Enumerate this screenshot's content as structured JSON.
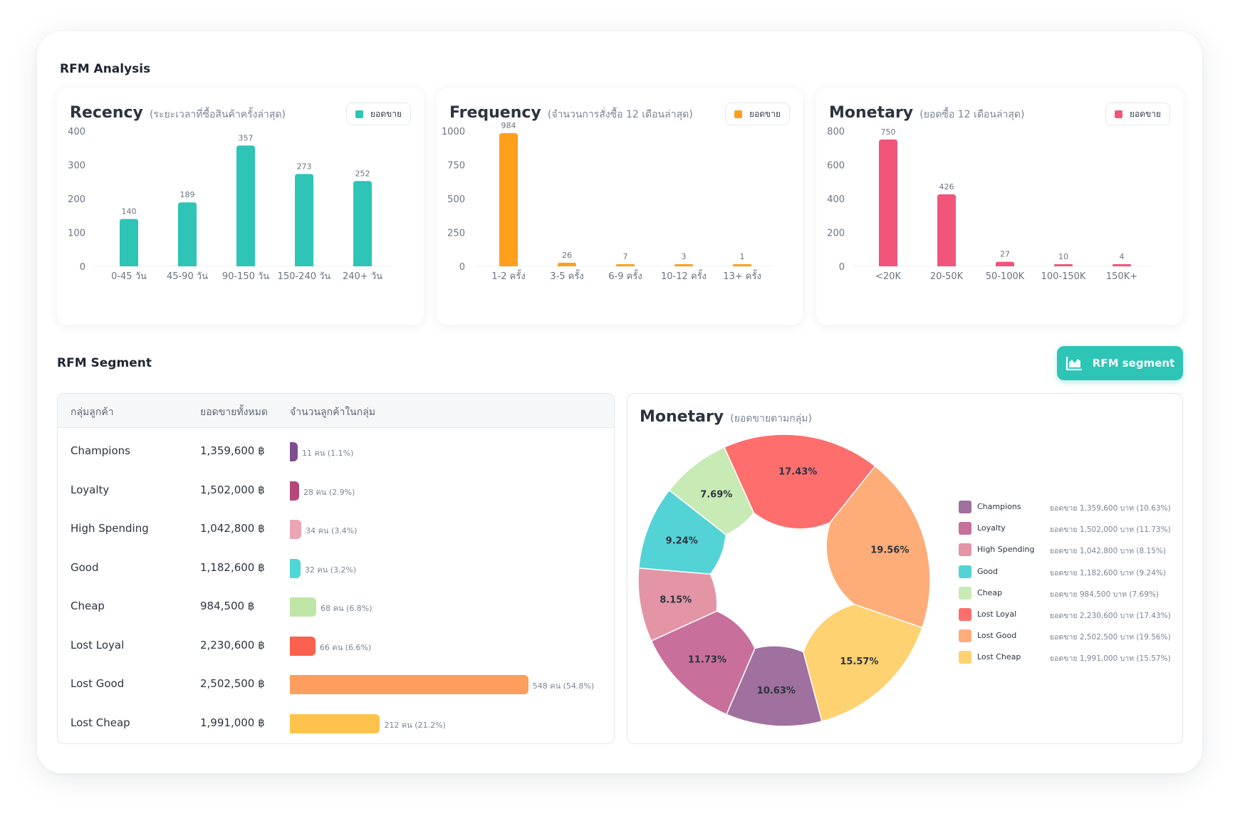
{
  "rfm_analysis_title": "RFM Analysis",
  "rfm_segment_title": "RFM Segment",
  "segment_button": {
    "label": "RFM segment",
    "icon": "chart-area-icon"
  },
  "legend_label": "ยอดขาย",
  "charts": {
    "recency": {
      "title": "Recency",
      "subtitle": "(ระยะเวลาที่ซื้อสินค้าครั้งล่าสุด)",
      "color": "#2ec4b6"
    },
    "frequency": {
      "title": "Frequency",
      "subtitle": "(จำนวนการสั่งซื้อ 12 เดือนล่าสุด)",
      "color": "#ff9f1c"
    },
    "monetary": {
      "title": "Monetary",
      "subtitle": "(ยอดซื้อ 12 เดือนล่าสุด)",
      "color": "#f2557a"
    }
  },
  "chart_data": [
    {
      "type": "bar",
      "id": "recency",
      "categories": [
        "0-45 วัน",
        "45-90 วัน",
        "90-150 วัน",
        "150-240 วัน",
        "240+ วัน"
      ],
      "values": [
        140,
        189,
        357,
        273,
        252
      ],
      "yticks": [
        0,
        100,
        200,
        300,
        400
      ],
      "ylim": [
        0,
        400
      ],
      "series": [
        {
          "name": "ยอดขาย",
          "values": [
            140,
            189,
            357,
            273,
            252
          ]
        }
      ]
    },
    {
      "type": "bar",
      "id": "frequency",
      "categories": [
        "1-2 ครั้ง",
        "3-5 ครั้ง",
        "6-9 ครั้ง",
        "10-12 ครั้ง",
        "13+ ครั้ง"
      ],
      "values": [
        984,
        26,
        7,
        3,
        1
      ],
      "yticks": [
        0,
        250,
        500,
        750,
        1000
      ],
      "ylim": [
        0,
        1000
      ],
      "series": [
        {
          "name": "ยอดขาย",
          "values": [
            984,
            26,
            7,
            3,
            1
          ]
        }
      ]
    },
    {
      "type": "bar",
      "id": "monetary",
      "categories": [
        "<20K",
        "20-50K",
        "50-100K",
        "100-150K",
        "150K+"
      ],
      "values": [
        750,
        426,
        27,
        10,
        4
      ],
      "yticks": [
        0,
        200,
        400,
        600,
        800
      ],
      "ylim": [
        0,
        800
      ],
      "series": [
        {
          "name": "ยอดขาย",
          "values": [
            750,
            426,
            27,
            10,
            4
          ]
        }
      ]
    },
    {
      "type": "pie",
      "id": "monetary-by-group",
      "title": "Monetary",
      "subtitle": "(ยอดขายตามกลุ่ม)",
      "categories": [
        "Champions",
        "Loyalty",
        "High Spending",
        "Good",
        "Cheap",
        "Lost Loyal",
        "Lost Good",
        "Lost Cheap"
      ],
      "values": [
        10.63,
        11.73,
        8.15,
        9.24,
        7.69,
        17.43,
        19.56,
        15.57
      ],
      "labels": [
        "10.63%",
        "11.73%",
        "8.15%",
        "9.24%",
        "7.69%",
        "17.43%",
        "19.56%",
        "15.57%"
      ]
    }
  ],
  "table": {
    "headers": [
      "กลุ่มลูกค้า",
      "ยอดขายทั้งหมด",
      "จำนวนลูกค้าในกลุ่ม"
    ],
    "rows": [
      {
        "name": "Champions",
        "amount": "1,359,600 ฿",
        "count": "11 คน (1.1%)",
        "share": 0.011,
        "color": "#7d4f91"
      },
      {
        "name": "Loyalty",
        "amount": "1,502,000 ฿",
        "count": "28 คน (2.9%)",
        "share": 0.029,
        "color": "#b5487b"
      },
      {
        "name": "High Spending",
        "amount": "1,042,800 ฿",
        "count": "34 คน (3.4%)",
        "share": 0.034,
        "color": "#eba5b3"
      },
      {
        "name": "Good",
        "amount": "1,182,600 ฿",
        "count": "32 คน (3.2%)",
        "share": 0.032,
        "color": "#4fd6d8"
      },
      {
        "name": "Cheap",
        "amount": "984,500 ฿",
        "count": "68 คน (6.8%)",
        "share": 0.068,
        "color": "#bfe6a6"
      },
      {
        "name": "Lost Loyal",
        "amount": "2,230,600 ฿",
        "count": "66 คน (6.6%)",
        "share": 0.066,
        "color": "#fb5f4e"
      },
      {
        "name": "Lost Good",
        "amount": "2,502,500 ฿",
        "count": "548 คน (54.8%)",
        "share": 0.548,
        "color": "#fd9d5e"
      },
      {
        "name": "Lost Cheap",
        "amount": "1,991,000 ฿",
        "count": "212 คน (21.2%)",
        "share": 0.212,
        "color": "#fec34c"
      }
    ]
  },
  "donut": {
    "title": "Monetary",
    "subtitle": "(ยอดขายตามกลุ่ม)",
    "segments": [
      {
        "name": "Champions",
        "pct": 10.63,
        "label": "10.63%",
        "color": "#a0709e",
        "legend": "ยอดขาย 1,359,600 บาท (10.63%)"
      },
      {
        "name": "Loyalty",
        "pct": 11.73,
        "label": "11.73%",
        "color": "#c86f9b",
        "legend": "ยอดขาย 1,502,000 บาท (11.73%)"
      },
      {
        "name": "High Spending",
        "pct": 8.15,
        "label": "8.15%",
        "color": "#e395a6",
        "legend": "ยอดขาย 1,042,800 บาท (8.15%)"
      },
      {
        "name": "Good",
        "pct": 9.24,
        "label": "9.24%",
        "color": "#53d3d6",
        "legend": "ยอดขาย 1,182,600 บาท (9.24%)"
      },
      {
        "name": "Cheap",
        "pct": 7.69,
        "label": "7.69%",
        "color": "#c8eab4",
        "legend": "ยอดขาย 984,500 บาท (7.69%)"
      },
      {
        "name": "Lost Loyal",
        "pct": 17.43,
        "label": "17.43%",
        "color": "#fd6e6c",
        "legend": "ยอดขาย 2,230,600 บาท (17.43%)"
      },
      {
        "name": "Lost Good",
        "pct": 19.56,
        "label": "19.56%",
        "color": "#feac78",
        "legend": "ยอดขาย 2,502,500 บาท (19.56%)"
      },
      {
        "name": "Lost Cheap",
        "pct": 15.57,
        "label": "15.57%",
        "color": "#fed171",
        "legend": "ยอดขาย 1,991,000 บาท (15.57%)"
      }
    ]
  }
}
